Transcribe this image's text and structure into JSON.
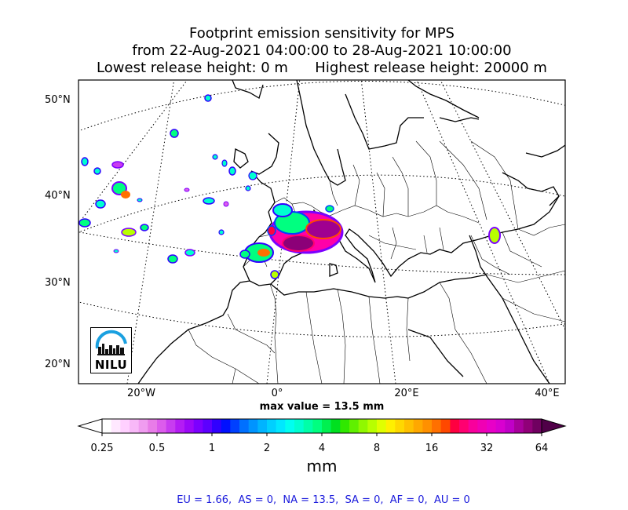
{
  "title": {
    "line1": "Footprint emission sensitivity for MPS",
    "line2": "from 22-Aug-2021 04:00:00 to 28-Aug-2021 10:00:00",
    "line3_left": "Lowest release height: 0 m",
    "line3_right": "Highest release height: 20000 m"
  },
  "map": {
    "lat_labels": [
      "50°N",
      "40°N",
      "30°N",
      "20°N"
    ],
    "lon_labels": [
      "20°W",
      "0°",
      "20°E",
      "40°E"
    ],
    "max_value": "max value = 13.5 mm",
    "logo_text": "NILU"
  },
  "colorbar": {
    "ticks": [
      "0.25",
      "0.5",
      "1",
      "2",
      "4",
      "8",
      "16",
      "32",
      "64"
    ],
    "unit": "mm",
    "colors": [
      "#ffffff",
      "#ffe8ff",
      "#ffd0ff",
      "#f8b8f8",
      "#f09cf0",
      "#e87ce8",
      "#dc5cec",
      "#c83cf0",
      "#b41cf4",
      "#9c08f8",
      "#7c00ff",
      "#5c00ff",
      "#3000ff",
      "#0010ff",
      "#0040ff",
      "#0070ff",
      "#0094ff",
      "#00b4ff",
      "#00d0ff",
      "#00e8ff",
      "#00fff0",
      "#00ffd0",
      "#00ffa8",
      "#00ff80",
      "#00f050",
      "#00e020",
      "#30e800",
      "#60f000",
      "#90f800",
      "#b8ff00",
      "#e0ff00",
      "#fff000",
      "#ffd800",
      "#ffc000",
      "#ffa800",
      "#ff9000",
      "#ff7000",
      "#ff4800",
      "#ff0040",
      "#ff0070",
      "#f8009c",
      "#f000b4",
      "#e800c8",
      "#d800d0",
      "#c000c8",
      "#a8009c",
      "#900078",
      "#700060"
    ]
  },
  "footer": "EU = 1.66,  AS = 0,  NA = 13.5,  SA = 0,  AF = 0,  AU = 0"
}
